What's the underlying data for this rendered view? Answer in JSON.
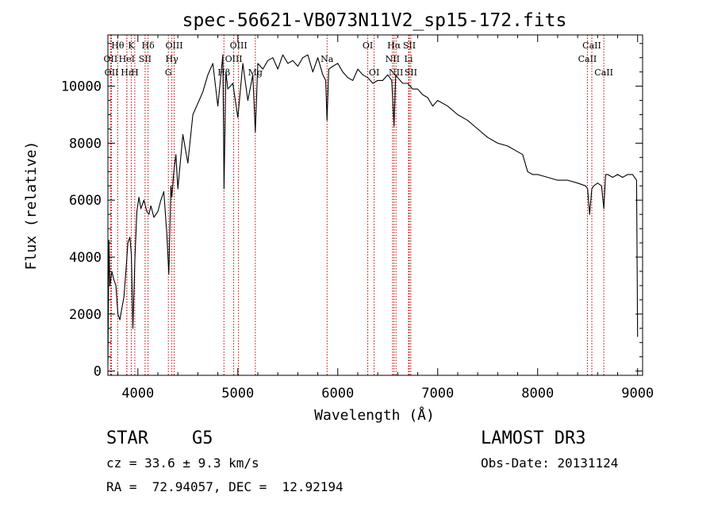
{
  "chart_data": {
    "type": "line",
    "title": "spec-56621-VB073N11V2_sp15-172.fits",
    "xlabel": "Wavelength (Å)",
    "ylabel": "Flux (relative)",
    "xlim": [
      3700,
      9050
    ],
    "ylim": [
      -150,
      11800
    ],
    "xticks": [
      4000,
      5000,
      6000,
      7000,
      8000,
      9000
    ],
    "yticks": [
      0,
      2000,
      4000,
      6000,
      8000,
      10000
    ],
    "grid": false,
    "series": [
      {
        "x": [
          3700,
          3710,
          3720,
          3740,
          3760,
          3780,
          3800,
          3820,
          3840,
          3860,
          3880,
          3900,
          3920,
          3935,
          3950,
          3970,
          3990,
          4010,
          4030,
          4060,
          4090,
          4110,
          4130,
          4160,
          4200,
          4230,
          4260,
          4290,
          4310,
          4330,
          4340,
          4360,
          4380,
          4400,
          4450,
          4500,
          4550,
          4600,
          4650,
          4700,
          4750,
          4800,
          4850,
          4862,
          4880,
          4900,
          4950,
          5000,
          5050,
          5100,
          5150,
          5175,
          5200,
          5250,
          5300,
          5350,
          5400,
          5450,
          5500,
          5550,
          5600,
          5650,
          5700,
          5750,
          5800,
          5850,
          5880,
          5892,
          5910,
          5950,
          6000,
          6050,
          6100,
          6150,
          6200,
          6250,
          6300,
          6350,
          6400,
          6450,
          6500,
          6540,
          6563,
          6580,
          6600,
          6650,
          6700,
          6750,
          6800,
          6850,
          6900,
          6950,
          7000,
          7100,
          7200,
          7300,
          7400,
          7500,
          7600,
          7700,
          7800,
          7850,
          7900,
          7950,
          8000,
          8100,
          8200,
          8300,
          8400,
          8480,
          8500,
          8520,
          8542,
          8560,
          8600,
          8640,
          8662,
          8680,
          8700,
          8750,
          8800,
          8850,
          8900,
          8950,
          8990,
          9000
        ],
        "values": [
          200,
          4600,
          3000,
          3500,
          3200,
          3000,
          2000,
          1800,
          2200,
          2600,
          3500,
          4500,
          4700,
          4100,
          1500,
          3900,
          5600,
          6100,
          5700,
          6000,
          5600,
          5500,
          5800,
          5400,
          5600,
          6000,
          6300,
          4800,
          3400,
          6500,
          6100,
          7000,
          7600,
          6400,
          8300,
          7300,
          9000,
          9400,
          9800,
          10400,
          10800,
          9300,
          11100,
          6400,
          10500,
          9900,
          10100,
          8900,
          10800,
          9500,
          10400,
          8400,
          10800,
          10600,
          10900,
          11000,
          10600,
          11100,
          10800,
          10900,
          10700,
          11000,
          11100,
          10500,
          11000,
          10400,
          10200,
          8800,
          10600,
          10700,
          10800,
          10500,
          10300,
          10200,
          10600,
          10400,
          10300,
          10100,
          10200,
          10200,
          10400,
          10200,
          8600,
          10400,
          10300,
          10100,
          10100,
          9900,
          9900,
          9700,
          9600,
          9300,
          9500,
          9300,
          9000,
          8800,
          8500,
          8200,
          8000,
          7900,
          7700,
          7600,
          7000,
          6900,
          6900,
          6800,
          6700,
          6700,
          6600,
          6500,
          6400,
          5500,
          6400,
          6500,
          6600,
          6500,
          5700,
          6900,
          6900,
          6800,
          6900,
          6800,
          6900,
          6900,
          6700,
          1200
        ]
      }
    ],
    "annotations": [
      {
        "label": "Hθ",
        "x": 3798,
        "row": 1
      },
      {
        "label": "OII",
        "x": 3727,
        "row": 2
      },
      {
        "label": "OII",
        "x": 3736,
        "row": 3
      },
      {
        "label": "K",
        "x": 3934,
        "row": 1
      },
      {
        "label": "HeI",
        "x": 3889,
        "row": 2
      },
      {
        "label": "Hε",
        "x": 3890,
        "row": 3
      },
      {
        "label": "SII",
        "x": 4072,
        "row": 2
      },
      {
        "label": "H",
        "x": 3969,
        "row": 3
      },
      {
        "label": "Hδ",
        "x": 4102,
        "row": 1
      },
      {
        "label": "OIII",
        "x": 4363,
        "row": 1
      },
      {
        "label": "Hγ",
        "x": 4340,
        "row": 2
      },
      {
        "label": "G",
        "x": 4305,
        "row": 3
      },
      {
        "label": "OIII",
        "x": 5007,
        "row": 1
      },
      {
        "label": "OIII",
        "x": 4959,
        "row": 2
      },
      {
        "label": "Hβ",
        "x": 4861,
        "row": 3
      },
      {
        "label": "Mg",
        "x": 5175,
        "row": 3
      },
      {
        "label": "Na",
        "x": 5893,
        "row": 2
      },
      {
        "label": "OI",
        "x": 6300,
        "row": 1
      },
      {
        "label": "OI",
        "x": 6364,
        "row": 3
      },
      {
        "label": "Hα",
        "x": 6563,
        "row": 1
      },
      {
        "label": "SII",
        "x": 6716,
        "row": 1
      },
      {
        "label": "NII",
        "x": 6548,
        "row": 2
      },
      {
        "label": "Li",
        "x": 6708,
        "row": 2
      },
      {
        "label": "NII",
        "x": 6583,
        "row": 3
      },
      {
        "label": "SII",
        "x": 6731,
        "row": 3
      },
      {
        "label": "CaII",
        "x": 8542,
        "row": 1
      },
      {
        "label": "CaII",
        "x": 8498,
        "row": 2
      },
      {
        "label": "CaII",
        "x": 8662,
        "row": 3
      }
    ]
  },
  "footer": {
    "object_class": "STAR",
    "subclass": "G5",
    "cz_text": "cz = 33.6 ± 9.3 km/s",
    "coords_text": "RA =  72.94057, DEC =  12.92194",
    "survey": "LAMOST DR3",
    "obs_date_text": "Obs-Date: 20131124"
  },
  "colors": {
    "spectrum": "#000000",
    "line_markers": "#c00000",
    "axes": "#000000"
  }
}
